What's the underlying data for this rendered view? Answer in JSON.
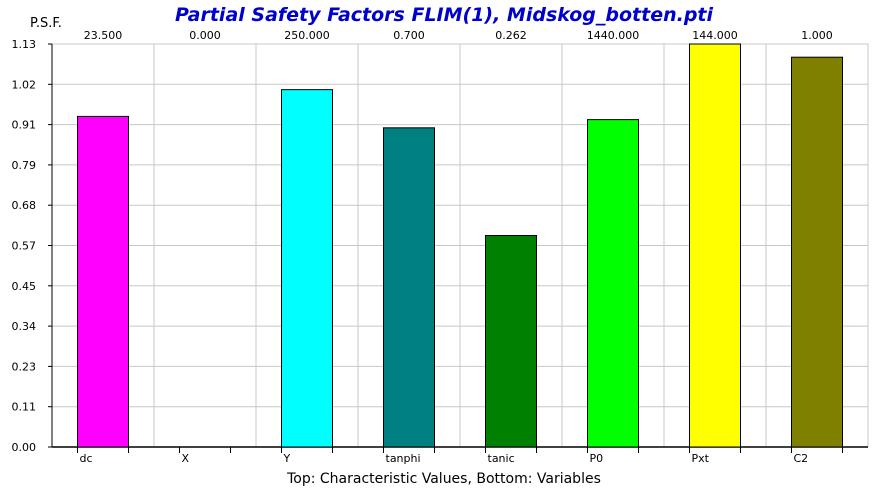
{
  "chart_data": {
    "type": "bar",
    "title": "Partial Safety Factors FLIM(1), Midskog_botten.pti",
    "ylabel": "P.S.F.",
    "xlabel": "Top: Characteristic Values, Bottom: Variables",
    "ylim": [
      0,
      1.13
    ],
    "yticks": [
      "0.00",
      "0.11",
      "0.23",
      "0.34",
      "0.45",
      "0.57",
      "0.68",
      "0.79",
      "0.91",
      "1.02",
      "1.13"
    ],
    "grid": true,
    "categories": [
      "dc",
      "X",
      "Y",
      "tanphi",
      "tanic",
      "P0",
      "Pxt",
      "C2"
    ],
    "top_labels": [
      "23.500",
      "0.000",
      "250.000",
      "0.700",
      "0.262",
      "1440.000",
      "144.000",
      "1.000"
    ],
    "values": [
      0.927,
      0.0,
      1.002,
      0.895,
      0.593,
      0.918,
      1.13,
      1.093
    ],
    "colors": [
      "#ff00ff",
      "#ffffff",
      "#00ffff",
      "#008080",
      "#008000",
      "#00ff00",
      "#ffff00",
      "#808000"
    ]
  }
}
